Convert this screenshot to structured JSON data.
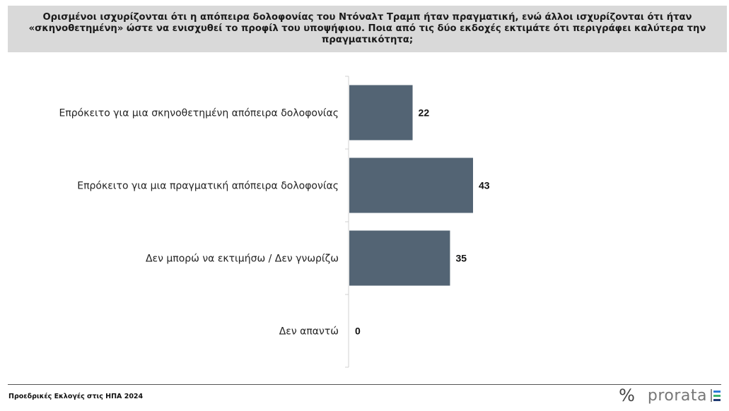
{
  "header": {
    "title": "Ορισμένοι ισχυρίζονται ότι η απόπειρα δολοφονίας του Ντόναλτ Τραμπ ήταν πραγματική, ενώ άλλοι ισχυρίζονται ότι ήταν «σκηνοθετημένη» ώστε να ενισχυθεί το προφίλ του υποψήφιου. Ποια από τις δύο εκδοχές εκτιμάτε ότι περιγράφει καλύτερα την πραγματικότητα;"
  },
  "chart_data": {
    "type": "bar",
    "orientation": "horizontal",
    "categories": [
      "Επρόκειτο για μια σκηνοθετημένη απόπειρα δολοφονίας",
      "Επρόκειτο για μια πραγματική απόπειρα δολοφονίας",
      "Δεν μπορώ να εκτιμήσω / Δεν γνωρίζω",
      "Δεν απαντώ"
    ],
    "values": [
      22,
      43,
      35,
      0
    ],
    "value_labels": [
      "22",
      "43",
      "35",
      "0"
    ],
    "bar_color": "#536474",
    "xlim": [
      0,
      100
    ],
    "grid": false,
    "legend": "none"
  },
  "footer": {
    "source": "Προεδρικές Εκλογές στις ΗΠΑ 2024",
    "brand_mark": "%",
    "brand_name": "prorata"
  }
}
